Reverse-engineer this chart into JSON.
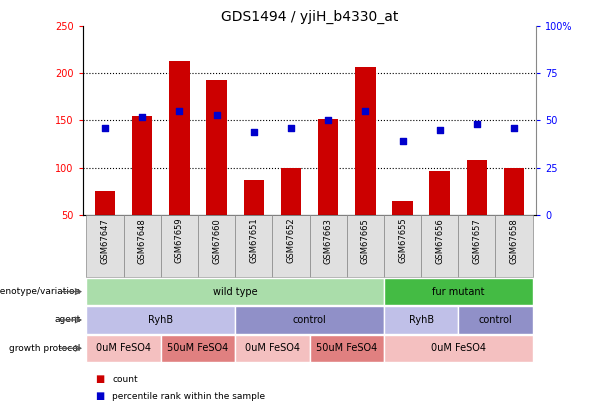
{
  "title": "GDS1494 / yjiH_b4330_at",
  "samples": [
    "GSM67647",
    "GSM67648",
    "GSM67659",
    "GSM67660",
    "GSM67651",
    "GSM67652",
    "GSM67663",
    "GSM67665",
    "GSM67655",
    "GSM67656",
    "GSM67657",
    "GSM67658"
  ],
  "bar_values": [
    75,
    155,
    213,
    193,
    87,
    100,
    152,
    207,
    65,
    96,
    108,
    100
  ],
  "dot_values": [
    46,
    52,
    55,
    53,
    44,
    46,
    50,
    55,
    39,
    45,
    48,
    46
  ],
  "bar_color": "#cc0000",
  "dot_color": "#0000cc",
  "ylim_left": [
    50,
    250
  ],
  "ylim_right": [
    0,
    100
  ],
  "yticks_left": [
    50,
    100,
    150,
    200,
    250
  ],
  "yticks_right": [
    0,
    25,
    50,
    75,
    100
  ],
  "ytick_labels_right": [
    "0",
    "25",
    "50",
    "75",
    "100%"
  ],
  "grid_values": [
    100,
    150,
    200
  ],
  "genotype_row": {
    "label": "genotype/variation",
    "segments": [
      {
        "text": "wild type",
        "start": 0,
        "end": 8,
        "color": "#aaddaa"
      },
      {
        "text": "fur mutant",
        "start": 8,
        "end": 12,
        "color": "#44bb44"
      }
    ]
  },
  "agent_row": {
    "label": "agent",
    "segments": [
      {
        "text": "RyhB",
        "start": 0,
        "end": 4,
        "color": "#c0c0e8"
      },
      {
        "text": "control",
        "start": 4,
        "end": 8,
        "color": "#9090c8"
      },
      {
        "text": "RyhB",
        "start": 8,
        "end": 10,
        "color": "#c0c0e8"
      },
      {
        "text": "control",
        "start": 10,
        "end": 12,
        "color": "#9090c8"
      }
    ]
  },
  "growth_row": {
    "label": "growth protocol",
    "segments": [
      {
        "text": "0uM FeSO4",
        "start": 0,
        "end": 2,
        "color": "#f4c0c0"
      },
      {
        "text": "50uM FeSO4",
        "start": 2,
        "end": 4,
        "color": "#e08080"
      },
      {
        "text": "0uM FeSO4",
        "start": 4,
        "end": 6,
        "color": "#f4c0c0"
      },
      {
        "text": "50uM FeSO4",
        "start": 6,
        "end": 8,
        "color": "#e08080"
      },
      {
        "text": "0uM FeSO4",
        "start": 8,
        "end": 12,
        "color": "#f4c0c0"
      }
    ]
  },
  "legend_items": [
    {
      "label": "count",
      "color": "#cc0000"
    },
    {
      "label": "percentile rank within the sample",
      "color": "#0000cc"
    }
  ],
  "background_color": "#ffffff",
  "bar_bottom": 50,
  "sample_cell_color": "#e0e0e0",
  "sample_cell_edge": "#888888"
}
